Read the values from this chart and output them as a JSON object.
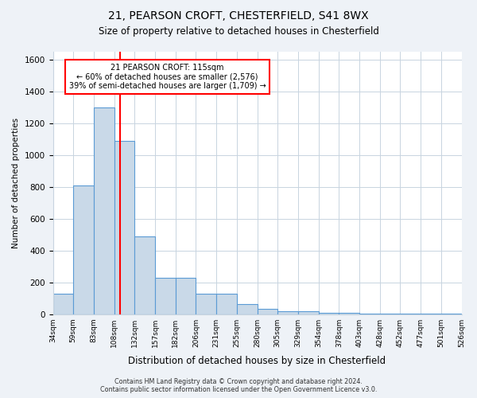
{
  "title1": "21, PEARSON CROFT, CHESTERFIELD, S41 8WX",
  "title2": "Size of property relative to detached houses in Chesterfield",
  "xlabel": "Distribution of detached houses by size in Chesterfield",
  "ylabel": "Number of detached properties",
  "footer1": "Contains HM Land Registry data © Crown copyright and database right 2024.",
  "footer2": "Contains public sector information licensed under the Open Government Licence v3.0.",
  "annotation_line1": "21 PEARSON CROFT: 115sqm",
  "annotation_line2": "← 60% of detached houses are smaller (2,576)",
  "annotation_line3": "39% of semi-detached houses are larger (1,709) →",
  "bar_values": [
    130,
    810,
    1300,
    1090,
    490,
    230,
    230,
    130,
    130,
    65,
    35,
    20,
    20,
    10,
    10,
    5,
    5,
    5,
    5,
    5
  ],
  "bin_labels": [
    "34sqm",
    "59sqm",
    "83sqm",
    "108sqm",
    "132sqm",
    "157sqm",
    "182sqm",
    "206sqm",
    "231sqm",
    "255sqm",
    "280sqm",
    "305sqm",
    "329sqm",
    "354sqm",
    "378sqm",
    "403sqm",
    "428sqm",
    "452sqm",
    "477sqm",
    "501sqm",
    "526sqm"
  ],
  "bar_color": "#c9d9e8",
  "bar_edge_color": "#5b9bd5",
  "vline_color": "red",
  "ylim": [
    0,
    1650
  ],
  "yticks": [
    0,
    200,
    400,
    600,
    800,
    1000,
    1200,
    1400,
    1600
  ],
  "bg_color": "#eef2f7",
  "plot_bg_color": "#ffffff",
  "grid_color": "#c8d4e0"
}
